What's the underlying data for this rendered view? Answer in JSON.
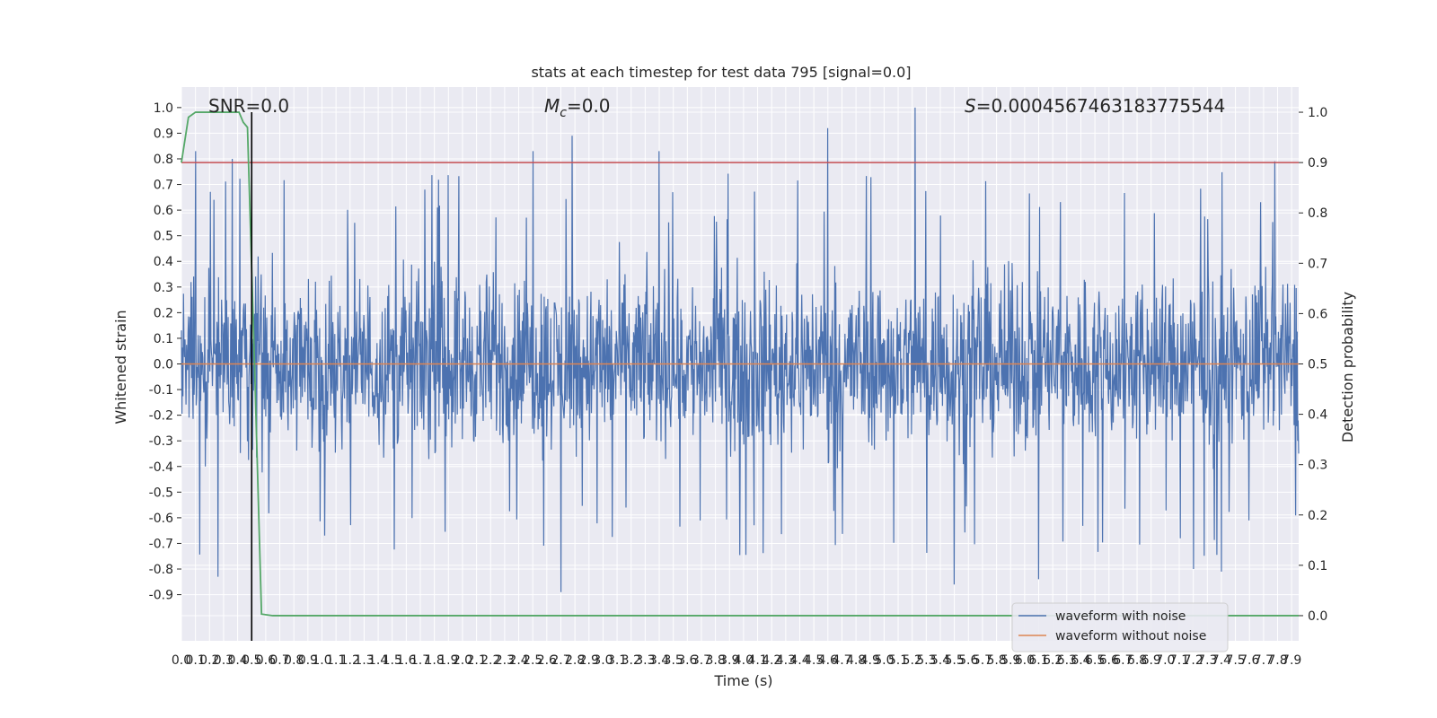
{
  "chart_data": {
    "type": "line",
    "title": "stats at each timestep for test data 795 [signal=0.0]",
    "xlabel": "Time (s)",
    "ylabel_left": "Whitened strain",
    "ylabel_right": "Detection probability",
    "xlim": [
      0.0,
      7.95
    ],
    "ylim_left": [
      -1.08,
      1.08
    ],
    "ylim_right": [
      -0.05,
      1.05
    ],
    "grid": true,
    "legend_position": "lower-right",
    "x_tick_labels": [
      "0.0",
      "0.1",
      "0.2",
      "0.3",
      "0.4",
      "0.5",
      "0.6",
      "0.7",
      "0.8",
      "0.9",
      "1.0",
      "1.1",
      "1.2",
      "1.3",
      "1.4",
      "1.5",
      "1.6",
      "1.7",
      "1.8",
      "1.9",
      "2.0",
      "2.1",
      "2.2",
      "2.3",
      "2.4",
      "2.5",
      "2.6",
      "2.7",
      "2.8",
      "2.9",
      "3.0",
      "3.1",
      "3.2",
      "3.3",
      "3.4",
      "3.5",
      "3.6",
      "3.7",
      "3.8",
      "3.9",
      "4.0",
      "4.1",
      "4.2",
      "4.3",
      "4.4",
      "4.5",
      "4.6",
      "4.7",
      "4.8",
      "4.9",
      "5.0",
      "5.1",
      "5.2",
      "5.3",
      "5.4",
      "5.5",
      "5.6",
      "5.7",
      "5.8",
      "5.9",
      "6.0",
      "6.1",
      "6.2",
      "6.3",
      "6.4",
      "6.5",
      "6.6",
      "6.7",
      "6.8",
      "6.9",
      "7.0",
      "7.1",
      "7.2",
      "7.3",
      "7.4",
      "7.5",
      "7.6",
      "7.7",
      "7.8",
      "7.9"
    ],
    "y_tick_labels_left": [
      "1.0",
      "0.9",
      "0.8",
      "0.7",
      "0.6",
      "0.5",
      "0.4",
      "0.3",
      "0.2",
      "0.1",
      "0.0",
      "-0.1",
      "-0.2",
      "-0.3",
      "-0.4",
      "-0.5",
      "-0.6",
      "-0.7",
      "-0.8",
      "-0.9"
    ],
    "y_tick_labels_right": [
      "1.0",
      "0.9",
      "0.8",
      "0.7",
      "0.6",
      "0.5",
      "0.4",
      "0.3",
      "0.2",
      "0.1",
      "0.0"
    ],
    "series": [
      {
        "name": "waveform with noise",
        "axis": "left",
        "color": "#4c72b0",
        "style": "dense noise",
        "envelope_typical": [
          -0.45,
          0.48
        ],
        "peaks": [
          {
            "x": 0.1,
            "y": 0.83
          },
          {
            "x": 0.36,
            "y": 0.8
          },
          {
            "x": 0.26,
            "y": -0.83
          },
          {
            "x": 2.5,
            "y": 0.83
          },
          {
            "x": 2.78,
            "y": 0.89
          },
          {
            "x": 2.7,
            "y": -0.89
          },
          {
            "x": 3.4,
            "y": 0.83
          },
          {
            "x": 4.6,
            "y": 0.92
          },
          {
            "x": 5.22,
            "y": 1.0
          },
          {
            "x": 5.5,
            "y": -0.86
          },
          {
            "x": 6.1,
            "y": -0.84
          },
          {
            "x": 7.2,
            "y": -0.8
          },
          {
            "x": 7.4,
            "y": -0.81
          },
          {
            "x": 7.78,
            "y": 0.79
          }
        ]
      },
      {
        "name": "waveform without noise",
        "axis": "left",
        "color": "#dd8452",
        "x": [
          0.0,
          7.95
        ],
        "y": [
          0.0,
          0.0
        ]
      },
      {
        "name": "",
        "axis": "right",
        "color": "#55a868",
        "x": [
          0.0,
          0.05,
          0.1,
          0.2,
          0.3,
          0.35,
          0.41,
          0.44,
          0.47,
          0.52,
          0.57,
          0.65,
          7.95
        ],
        "y": [
          0.9,
          0.99,
          1.0,
          1.0,
          1.0,
          1.0,
          1.0,
          0.98,
          0.97,
          0.5,
          0.003,
          0.0,
          0.0
        ]
      },
      {
        "name": "",
        "axis": "right",
        "color": "#c44e52",
        "x": [
          0.0,
          7.95
        ],
        "y": [
          0.9,
          0.9
        ]
      }
    ],
    "vertical_line": {
      "x": 0.5,
      "y_from": -0.05,
      "y_to": 1.0,
      "color": "#000000"
    },
    "annotations": {
      "snr": "SNR=0.0",
      "mc_symbol": "M",
      "mc_subscript": "c",
      "mc_value": "=0.0",
      "s_symbol": "S",
      "s_value": "=0.0004567463183775544"
    },
    "legend": [
      {
        "label": "waveform with noise",
        "color": "#4c72b0"
      },
      {
        "label": "waveform without noise",
        "color": "#dd8452"
      }
    ]
  },
  "style": {
    "plot_background": "#eaeaf2",
    "grid_color": "#ffffff"
  }
}
